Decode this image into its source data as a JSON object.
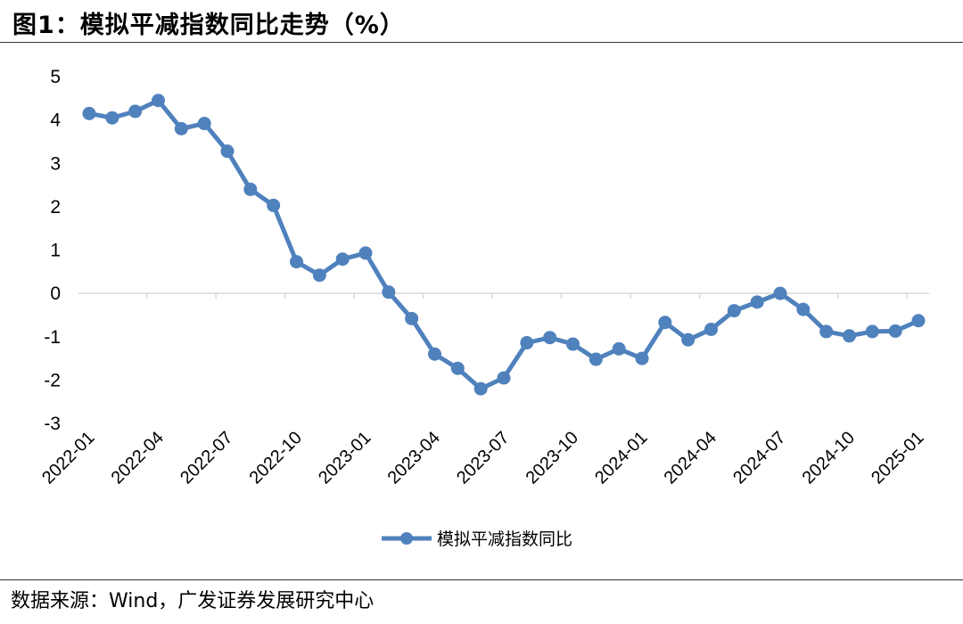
{
  "title": "图1：模拟平减指数同比走势（%）",
  "source": "数据来源：Wind，广发证券发展研究中心",
  "colors": {
    "series": "#4F81BD",
    "axis": "#D9D9D9",
    "text": "#000000"
  },
  "chart_data": {
    "type": "line",
    "title": "",
    "xlabel": "",
    "ylabel": "",
    "ylim": [
      -3,
      5
    ],
    "yticks": [
      5,
      4,
      3,
      2,
      1,
      0,
      -1,
      -2,
      -3
    ],
    "grid": false,
    "legend_position": "bottom",
    "x": [
      "2022-01",
      "2022-02",
      "2022-03",
      "2022-04",
      "2022-05",
      "2022-06",
      "2022-07",
      "2022-08",
      "2022-09",
      "2022-10",
      "2022-11",
      "2022-12",
      "2023-01",
      "2023-02",
      "2023-03",
      "2023-04",
      "2023-05",
      "2023-06",
      "2023-07",
      "2023-08",
      "2023-09",
      "2023-10",
      "2023-11",
      "2023-12",
      "2024-01",
      "2024-02",
      "2024-03",
      "2024-04",
      "2024-05",
      "2024-06",
      "2024-07",
      "2024-08",
      "2024-09",
      "2024-10",
      "2024-11",
      "2024-12",
      "2025-01"
    ],
    "x_tick_labels": [
      "2022-01",
      "2022-04",
      "2022-07",
      "2022-10",
      "2023-01",
      "2023-04",
      "2023-07",
      "2023-10",
      "2024-01",
      "2024-04",
      "2024-07",
      "2024-10",
      "2025-01"
    ],
    "series": [
      {
        "name": "模拟平减指数同比",
        "values": [
          4.15,
          4.05,
          4.2,
          4.45,
          3.8,
          3.92,
          3.28,
          2.4,
          2.03,
          0.73,
          0.42,
          0.79,
          0.93,
          0.03,
          -0.58,
          -1.4,
          -1.73,
          -2.2,
          -1.95,
          -1.14,
          -1.02,
          -1.17,
          -1.52,
          -1.28,
          -1.5,
          -0.67,
          -1.07,
          -0.83,
          -0.4,
          -0.2,
          0.0,
          -0.37,
          -0.88,
          -0.98,
          -0.88,
          -0.87,
          -0.63
        ]
      }
    ]
  }
}
